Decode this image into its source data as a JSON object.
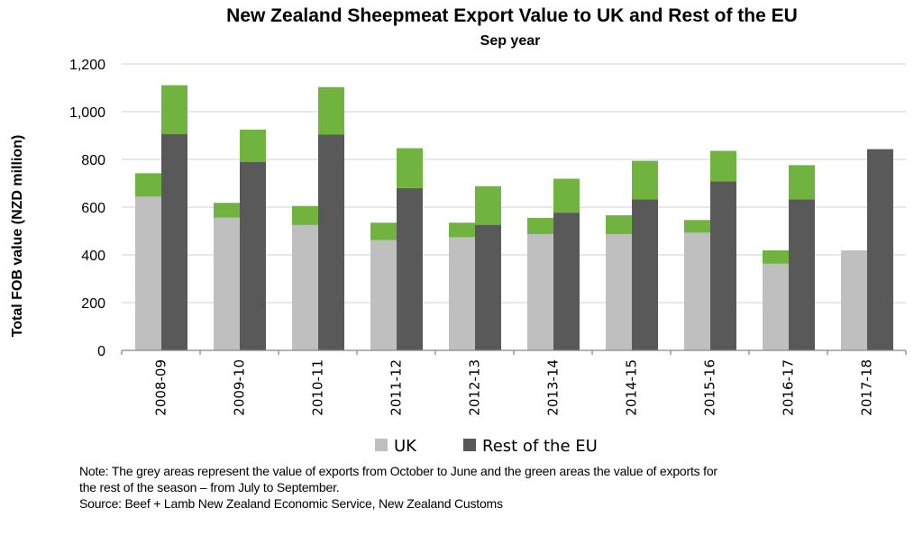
{
  "chart_data": {
    "type": "bar",
    "stacked": true,
    "title": "New Zealand Sheepmeat Export Value to UK and Rest of the EU",
    "subtitle": "Sep year",
    "xlabel": "",
    "ylabel": "Total FOB value (NZD million)",
    "ylim": [
      0,
      1200
    ],
    "yticks": [
      0,
      200,
      400,
      600,
      800,
      1000,
      1200
    ],
    "ytick_labels": [
      "0",
      "200",
      "400",
      "600",
      "800",
      "1,000",
      "1,200"
    ],
    "grid": true,
    "categories": [
      "2008-09",
      "2009-10",
      "2010-11",
      "2011-12",
      "2012-13",
      "2013-14",
      "2014-15",
      "2015-16",
      "2016-17",
      "2017-18"
    ],
    "series": [
      {
        "name": "UK",
        "color": "#bfbfbf",
        "oct_jun": [
          644,
          556,
          525,
          462,
          474,
          487,
          487,
          493,
          363,
          419
        ],
        "total_incl_jul_sep": [
          742,
          618,
          605,
          535,
          535,
          555,
          566,
          546,
          419,
          419
        ]
      },
      {
        "name": "Rest of the EU",
        "color": "#595959",
        "oct_jun": [
          907,
          790,
          905,
          680,
          526,
          577,
          632,
          708,
          632,
          843
        ],
        "total_incl_jul_sep": [
          1111,
          925,
          1103,
          847,
          688,
          719,
          794,
          836,
          776,
          843
        ]
      }
    ],
    "stack_segment_colors": {
      "oct_jun": "series color (grey)",
      "jul_sep": "#70b33f"
    },
    "legend": {
      "placement": "bottom",
      "entries": [
        "UK",
        "Rest of the EU"
      ]
    },
    "colors": {
      "uk": "#bfbfbf",
      "eu": "#595959",
      "jul_sep": "#70b33f",
      "grid": "#d9d9d9",
      "axis": "#888888"
    }
  },
  "notes": {
    "line1": "Note: The grey areas represent the value of exports from October to June and the green areas the value of exports for",
    "line2": "the rest of the season – from July to September.",
    "source": "Source: Beef + Lamb New Zealand Economic Service, New Zealand Customs"
  }
}
